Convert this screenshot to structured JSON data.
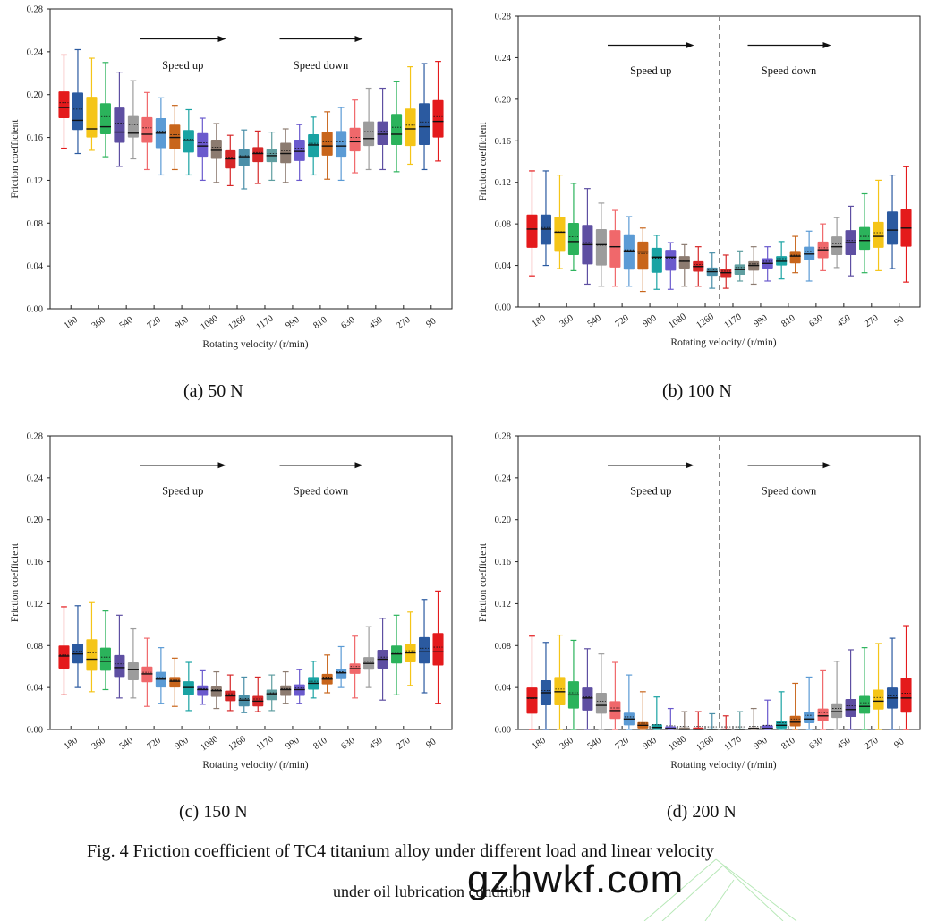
{
  "figure": {
    "caption_line1": "Fig. 4 Friction coefficient of TC4 titanium alloy under different load and linear velocity",
    "caption_line2": "under oil lubrication condition",
    "watermark": "gzhwkf.com"
  },
  "box_colors": [
    "#e41a1c",
    "#2b5aa0",
    "#f5c518",
    "#2bb35b",
    "#5e4fa2",
    "#9c9c9c",
    "#f0686b",
    "#5b9bd5",
    "#c8651b",
    "#1aa3a3",
    "#6a5acd",
    "#8c7b70",
    "#d62728",
    "#4a8fa8",
    "#d62728",
    "#5f9ea0",
    "#8c7b70",
    "#6a5acd",
    "#1aa3a3",
    "#c8651b",
    "#5b9bd5",
    "#f0686b",
    "#9c9c9c",
    "#5e4fa2",
    "#2bb35b",
    "#f5c518",
    "#2b5aa0",
    "#e41a1c"
  ],
  "chart_data": [
    {
      "type": "box",
      "subtitle": "(a) 50 N",
      "xlabel": "Rotating velocity/ (r/min)",
      "ylabel": "Friction coefficient",
      "ylim": [
        0,
        0.28
      ],
      "yticks": [
        "0.00",
        "0.04",
        "0.08",
        "0.12",
        "0.16",
        "0.20",
        "0.24",
        "0.28"
      ],
      "tick_labels": [
        "180",
        "360",
        "540",
        "720",
        "900",
        "1080",
        "1260",
        "1170",
        "990",
        "810",
        "630",
        "450",
        "270",
        "90"
      ],
      "annotations": {
        "left": "Speed up",
        "right": "Speed down"
      },
      "boxes": [
        {
          "min": 0.15,
          "q1": 0.178,
          "median": 0.188,
          "q3": 0.203,
          "max": 0.237
        },
        {
          "min": 0.145,
          "q1": 0.167,
          "median": 0.176,
          "q3": 0.202,
          "max": 0.242
        },
        {
          "min": 0.148,
          "q1": 0.16,
          "median": 0.168,
          "q3": 0.198,
          "max": 0.234
        },
        {
          "min": 0.142,
          "q1": 0.163,
          "median": 0.17,
          "q3": 0.192,
          "max": 0.23
        },
        {
          "min": 0.133,
          "q1": 0.155,
          "median": 0.165,
          "q3": 0.188,
          "max": 0.221
        },
        {
          "min": 0.14,
          "q1": 0.16,
          "median": 0.164,
          "q3": 0.18,
          "max": 0.213
        },
        {
          "min": 0.13,
          "q1": 0.155,
          "median": 0.163,
          "q3": 0.179,
          "max": 0.202
        },
        {
          "min": 0.125,
          "q1": 0.15,
          "median": 0.164,
          "q3": 0.178,
          "max": 0.197
        },
        {
          "min": 0.13,
          "q1": 0.149,
          "median": 0.16,
          "q3": 0.172,
          "max": 0.19
        },
        {
          "min": 0.125,
          "q1": 0.146,
          "median": 0.157,
          "q3": 0.167,
          "max": 0.186
        },
        {
          "min": 0.12,
          "q1": 0.142,
          "median": 0.152,
          "q3": 0.164,
          "max": 0.178
        },
        {
          "min": 0.118,
          "q1": 0.14,
          "median": 0.148,
          "q3": 0.158,
          "max": 0.173
        },
        {
          "min": 0.115,
          "q1": 0.131,
          "median": 0.14,
          "q3": 0.148,
          "max": 0.162
        },
        {
          "min": 0.112,
          "q1": 0.133,
          "median": 0.142,
          "q3": 0.149,
          "max": 0.167
        },
        {
          "min": 0.117,
          "q1": 0.137,
          "median": 0.145,
          "q3": 0.151,
          "max": 0.166
        },
        {
          "min": 0.12,
          "q1": 0.137,
          "median": 0.143,
          "q3": 0.149,
          "max": 0.165
        },
        {
          "min": 0.118,
          "q1": 0.136,
          "median": 0.145,
          "q3": 0.155,
          "max": 0.168
        },
        {
          "min": 0.12,
          "q1": 0.138,
          "median": 0.147,
          "q3": 0.158,
          "max": 0.172
        },
        {
          "min": 0.125,
          "q1": 0.142,
          "median": 0.153,
          "q3": 0.163,
          "max": 0.179
        },
        {
          "min": 0.121,
          "q1": 0.143,
          "median": 0.152,
          "q3": 0.165,
          "max": 0.184
        },
        {
          "min": 0.12,
          "q1": 0.142,
          "median": 0.152,
          "q3": 0.166,
          "max": 0.188
        },
        {
          "min": 0.127,
          "q1": 0.147,
          "median": 0.156,
          "q3": 0.169,
          "max": 0.195
        },
        {
          "min": 0.13,
          "q1": 0.152,
          "median": 0.159,
          "q3": 0.175,
          "max": 0.206
        },
        {
          "min": 0.13,
          "q1": 0.153,
          "median": 0.163,
          "q3": 0.175,
          "max": 0.206
        },
        {
          "min": 0.128,
          "q1": 0.153,
          "median": 0.163,
          "q3": 0.182,
          "max": 0.212
        },
        {
          "min": 0.135,
          "q1": 0.152,
          "median": 0.168,
          "q3": 0.187,
          "max": 0.226
        },
        {
          "min": 0.13,
          "q1": 0.153,
          "median": 0.17,
          "q3": 0.192,
          "max": 0.229
        },
        {
          "min": 0.138,
          "q1": 0.16,
          "median": 0.175,
          "q3": 0.195,
          "max": 0.231
        }
      ]
    },
    {
      "type": "box",
      "subtitle": "(b) 100 N",
      "xlabel": "Rotating velocity/ (r/min)",
      "ylabel": "Friction coefficient",
      "ylim": [
        0,
        0.28
      ],
      "yticks": [
        "0.00",
        "0.04",
        "0.08",
        "0.12",
        "0.16",
        "0.20",
        "0.24",
        "0.28"
      ],
      "tick_labels": [
        "180",
        "360",
        "540",
        "720",
        "900",
        "1080",
        "1260",
        "1170",
        "990",
        "810",
        "630",
        "450",
        "270",
        "90"
      ],
      "annotations": {
        "left": "Speed up",
        "right": "Speed down"
      },
      "boxes": [
        {
          "min": 0.03,
          "q1": 0.057,
          "median": 0.075,
          "q3": 0.089,
          "max": 0.131
        },
        {
          "min": 0.04,
          "q1": 0.06,
          "median": 0.075,
          "q3": 0.089,
          "max": 0.131
        },
        {
          "min": 0.037,
          "q1": 0.054,
          "median": 0.072,
          "q3": 0.087,
          "max": 0.127
        },
        {
          "min": 0.035,
          "q1": 0.05,
          "median": 0.063,
          "q3": 0.081,
          "max": 0.119
        },
        {
          "min": 0.022,
          "q1": 0.041,
          "median": 0.06,
          "q3": 0.079,
          "max": 0.114
        },
        {
          "min": 0.02,
          "q1": 0.04,
          "median": 0.06,
          "q3": 0.075,
          "max": 0.1
        },
        {
          "min": 0.02,
          "q1": 0.038,
          "median": 0.058,
          "q3": 0.074,
          "max": 0.093
        },
        {
          "min": 0.02,
          "q1": 0.036,
          "median": 0.054,
          "q3": 0.07,
          "max": 0.087
        },
        {
          "min": 0.015,
          "q1": 0.036,
          "median": 0.053,
          "q3": 0.063,
          "max": 0.076
        },
        {
          "min": 0.017,
          "q1": 0.033,
          "median": 0.048,
          "q3": 0.057,
          "max": 0.069
        },
        {
          "min": 0.017,
          "q1": 0.035,
          "median": 0.048,
          "q3": 0.055,
          "max": 0.062
        },
        {
          "min": 0.02,
          "q1": 0.037,
          "median": 0.044,
          "q3": 0.049,
          "max": 0.06
        },
        {
          "min": 0.02,
          "q1": 0.034,
          "median": 0.039,
          "q3": 0.044,
          "max": 0.058
        },
        {
          "min": 0.018,
          "q1": 0.03,
          "median": 0.034,
          "q3": 0.038,
          "max": 0.052
        },
        {
          "min": 0.018,
          "q1": 0.028,
          "median": 0.033,
          "q3": 0.037,
          "max": 0.05
        },
        {
          "min": 0.025,
          "q1": 0.031,
          "median": 0.036,
          "q3": 0.041,
          "max": 0.054
        },
        {
          "min": 0.022,
          "q1": 0.035,
          "median": 0.04,
          "q3": 0.044,
          "max": 0.058
        },
        {
          "min": 0.025,
          "q1": 0.037,
          "median": 0.042,
          "q3": 0.047,
          "max": 0.058
        },
        {
          "min": 0.027,
          "q1": 0.04,
          "median": 0.044,
          "q3": 0.049,
          "max": 0.063
        },
        {
          "min": 0.033,
          "q1": 0.042,
          "median": 0.049,
          "q3": 0.054,
          "max": 0.068
        },
        {
          "min": 0.025,
          "q1": 0.045,
          "median": 0.051,
          "q3": 0.058,
          "max": 0.073
        },
        {
          "min": 0.035,
          "q1": 0.047,
          "median": 0.055,
          "q3": 0.063,
          "max": 0.08
        },
        {
          "min": 0.038,
          "q1": 0.05,
          "median": 0.058,
          "q3": 0.068,
          "max": 0.086
        },
        {
          "min": 0.03,
          "q1": 0.05,
          "median": 0.062,
          "q3": 0.074,
          "max": 0.097
        },
        {
          "min": 0.033,
          "q1": 0.055,
          "median": 0.064,
          "q3": 0.077,
          "max": 0.109
        },
        {
          "min": 0.035,
          "q1": 0.057,
          "median": 0.068,
          "q3": 0.082,
          "max": 0.122
        },
        {
          "min": 0.037,
          "q1": 0.06,
          "median": 0.074,
          "q3": 0.092,
          "max": 0.127
        },
        {
          "min": 0.024,
          "q1": 0.058,
          "median": 0.076,
          "q3": 0.094,
          "max": 0.135
        }
      ]
    },
    {
      "type": "box",
      "subtitle": "(c) 150 N",
      "xlabel": "Rotating velocity/ (r/min)",
      "ylabel": "Friction coefficient",
      "ylim": [
        0,
        0.28
      ],
      "yticks": [
        "0.00",
        "0.04",
        "0.08",
        "0.12",
        "0.16",
        "0.20",
        "0.24",
        "0.28"
      ],
      "tick_labels": [
        "180",
        "360",
        "540",
        "720",
        "900",
        "1080",
        "1260",
        "1170",
        "990",
        "810",
        "630",
        "450",
        "270",
        "90"
      ],
      "annotations": {
        "left": "Speed up",
        "right": "Speed down"
      },
      "boxes": [
        {
          "min": 0.033,
          "q1": 0.058,
          "median": 0.07,
          "q3": 0.08,
          "max": 0.117
        },
        {
          "min": 0.04,
          "q1": 0.063,
          "median": 0.072,
          "q3": 0.082,
          "max": 0.118
        },
        {
          "min": 0.036,
          "q1": 0.056,
          "median": 0.067,
          "q3": 0.086,
          "max": 0.121
        },
        {
          "min": 0.038,
          "q1": 0.056,
          "median": 0.065,
          "q3": 0.078,
          "max": 0.113
        },
        {
          "min": 0.03,
          "q1": 0.05,
          "median": 0.059,
          "q3": 0.071,
          "max": 0.109
        },
        {
          "min": 0.03,
          "q1": 0.047,
          "median": 0.057,
          "q3": 0.064,
          "max": 0.096
        },
        {
          "min": 0.022,
          "q1": 0.045,
          "median": 0.053,
          "q3": 0.06,
          "max": 0.087
        },
        {
          "min": 0.025,
          "q1": 0.04,
          "median": 0.048,
          "q3": 0.055,
          "max": 0.078
        },
        {
          "min": 0.022,
          "q1": 0.04,
          "median": 0.046,
          "q3": 0.05,
          "max": 0.068
        },
        {
          "min": 0.018,
          "q1": 0.033,
          "median": 0.04,
          "q3": 0.046,
          "max": 0.064
        },
        {
          "min": 0.024,
          "q1": 0.032,
          "median": 0.038,
          "q3": 0.042,
          "max": 0.056
        },
        {
          "min": 0.02,
          "q1": 0.031,
          "median": 0.037,
          "q3": 0.041,
          "max": 0.055
        },
        {
          "min": 0.018,
          "q1": 0.027,
          "median": 0.032,
          "q3": 0.037,
          "max": 0.052
        },
        {
          "min": 0.016,
          "q1": 0.022,
          "median": 0.028,
          "q3": 0.033,
          "max": 0.05
        },
        {
          "min": 0.017,
          "q1": 0.022,
          "median": 0.027,
          "q3": 0.032,
          "max": 0.05
        },
        {
          "min": 0.018,
          "q1": 0.028,
          "median": 0.034,
          "q3": 0.038,
          "max": 0.052
        },
        {
          "min": 0.025,
          "q1": 0.032,
          "median": 0.038,
          "q3": 0.042,
          "max": 0.055
        },
        {
          "min": 0.025,
          "q1": 0.032,
          "median": 0.038,
          "q3": 0.043,
          "max": 0.057
        },
        {
          "min": 0.03,
          "q1": 0.038,
          "median": 0.044,
          "q3": 0.05,
          "max": 0.065
        },
        {
          "min": 0.035,
          "q1": 0.043,
          "median": 0.048,
          "q3": 0.053,
          "max": 0.071
        },
        {
          "min": 0.04,
          "q1": 0.048,
          "median": 0.054,
          "q3": 0.058,
          "max": 0.079
        },
        {
          "min": 0.03,
          "q1": 0.053,
          "median": 0.058,
          "q3": 0.063,
          "max": 0.089
        },
        {
          "min": 0.04,
          "q1": 0.057,
          "median": 0.063,
          "q3": 0.069,
          "max": 0.098
        },
        {
          "min": 0.028,
          "q1": 0.058,
          "median": 0.067,
          "q3": 0.076,
          "max": 0.106
        },
        {
          "min": 0.033,
          "q1": 0.063,
          "median": 0.072,
          "q3": 0.08,
          "max": 0.109
        },
        {
          "min": 0.042,
          "q1": 0.064,
          "median": 0.073,
          "q3": 0.082,
          "max": 0.112
        },
        {
          "min": 0.035,
          "q1": 0.063,
          "median": 0.074,
          "q3": 0.088,
          "max": 0.124
        },
        {
          "min": 0.025,
          "q1": 0.061,
          "median": 0.074,
          "q3": 0.092,
          "max": 0.132
        }
      ]
    },
    {
      "type": "box",
      "subtitle": "(d) 200 N",
      "xlabel": "Rotating velocity/ (r/min)",
      "ylabel": "Friction coefficient",
      "ylim": [
        0,
        0.28
      ],
      "yticks": [
        "0.00",
        "0.04",
        "0.08",
        "0.12",
        "0.16",
        "0.20",
        "0.24",
        "0.28"
      ],
      "tick_labels": [
        "180",
        "360",
        "540",
        "720",
        "900",
        "1080",
        "1260",
        "1170",
        "990",
        "810",
        "630",
        "450",
        "270",
        "90"
      ],
      "annotations": {
        "left": "Speed up",
        "right": "Speed down"
      },
      "boxes": [
        {
          "min": 0.0,
          "q1": 0.015,
          "median": 0.03,
          "q3": 0.04,
          "max": 0.089
        },
        {
          "min": 0.0,
          "q1": 0.023,
          "median": 0.035,
          "q3": 0.047,
          "max": 0.083
        },
        {
          "min": 0.0,
          "q1": 0.023,
          "median": 0.036,
          "q3": 0.05,
          "max": 0.09
        },
        {
          "min": 0.0,
          "q1": 0.02,
          "median": 0.033,
          "q3": 0.046,
          "max": 0.085
        },
        {
          "min": 0.0,
          "q1": 0.018,
          "median": 0.03,
          "q3": 0.04,
          "max": 0.077
        },
        {
          "min": 0.0,
          "q1": 0.015,
          "median": 0.023,
          "q3": 0.035,
          "max": 0.072
        },
        {
          "min": 0.0,
          "q1": 0.01,
          "median": 0.018,
          "q3": 0.027,
          "max": 0.064
        },
        {
          "min": 0.0,
          "q1": 0.004,
          "median": 0.01,
          "q3": 0.016,
          "max": 0.052
        },
        {
          "min": 0.0,
          "q1": 0.001,
          "median": 0.004,
          "q3": 0.007,
          "max": 0.036
        },
        {
          "min": 0.0,
          "q1": 0.0,
          "median": 0.002,
          "q3": 0.005,
          "max": 0.031
        },
        {
          "min": 0.0,
          "q1": 0.0,
          "median": 0.001,
          "q3": 0.003,
          "max": 0.02
        },
        {
          "min": 0.0,
          "q1": 0.0,
          "median": 0.0,
          "q3": 0.002,
          "max": 0.017
        },
        {
          "min": 0.0,
          "q1": 0.0,
          "median": 0.0,
          "q3": 0.002,
          "max": 0.017
        },
        {
          "min": 0.0,
          "q1": 0.0,
          "median": 0.0,
          "q3": 0.001,
          "max": 0.015
        },
        {
          "min": 0.0,
          "q1": 0.0,
          "median": 0.0,
          "q3": 0.001,
          "max": 0.013
        },
        {
          "min": 0.0,
          "q1": 0.0,
          "median": 0.0,
          "q3": 0.001,
          "max": 0.017
        },
        {
          "min": 0.0,
          "q1": 0.0,
          "median": 0.001,
          "q3": 0.002,
          "max": 0.02
        },
        {
          "min": 0.0,
          "q1": 0.0,
          "median": 0.001,
          "q3": 0.004,
          "max": 0.028
        },
        {
          "min": 0.0,
          "q1": 0.001,
          "median": 0.004,
          "q3": 0.008,
          "max": 0.036
        },
        {
          "min": 0.0,
          "q1": 0.003,
          "median": 0.007,
          "q3": 0.013,
          "max": 0.044
        },
        {
          "min": 0.0,
          "q1": 0.006,
          "median": 0.01,
          "q3": 0.017,
          "max": 0.05
        },
        {
          "min": 0.0,
          "q1": 0.008,
          "median": 0.013,
          "q3": 0.02,
          "max": 0.056
        },
        {
          "min": 0.0,
          "q1": 0.011,
          "median": 0.017,
          "q3": 0.025,
          "max": 0.065
        },
        {
          "min": 0.0,
          "q1": 0.012,
          "median": 0.019,
          "q3": 0.029,
          "max": 0.076
        },
        {
          "min": 0.0,
          "q1": 0.015,
          "median": 0.022,
          "q3": 0.032,
          "max": 0.078
        },
        {
          "min": 0.0,
          "q1": 0.019,
          "median": 0.027,
          "q3": 0.038,
          "max": 0.082
        },
        {
          "min": 0.0,
          "q1": 0.02,
          "median": 0.03,
          "q3": 0.04,
          "max": 0.087
        },
        {
          "min": 0.0,
          "q1": 0.016,
          "median": 0.03,
          "q3": 0.049,
          "max": 0.099
        }
      ]
    }
  ]
}
